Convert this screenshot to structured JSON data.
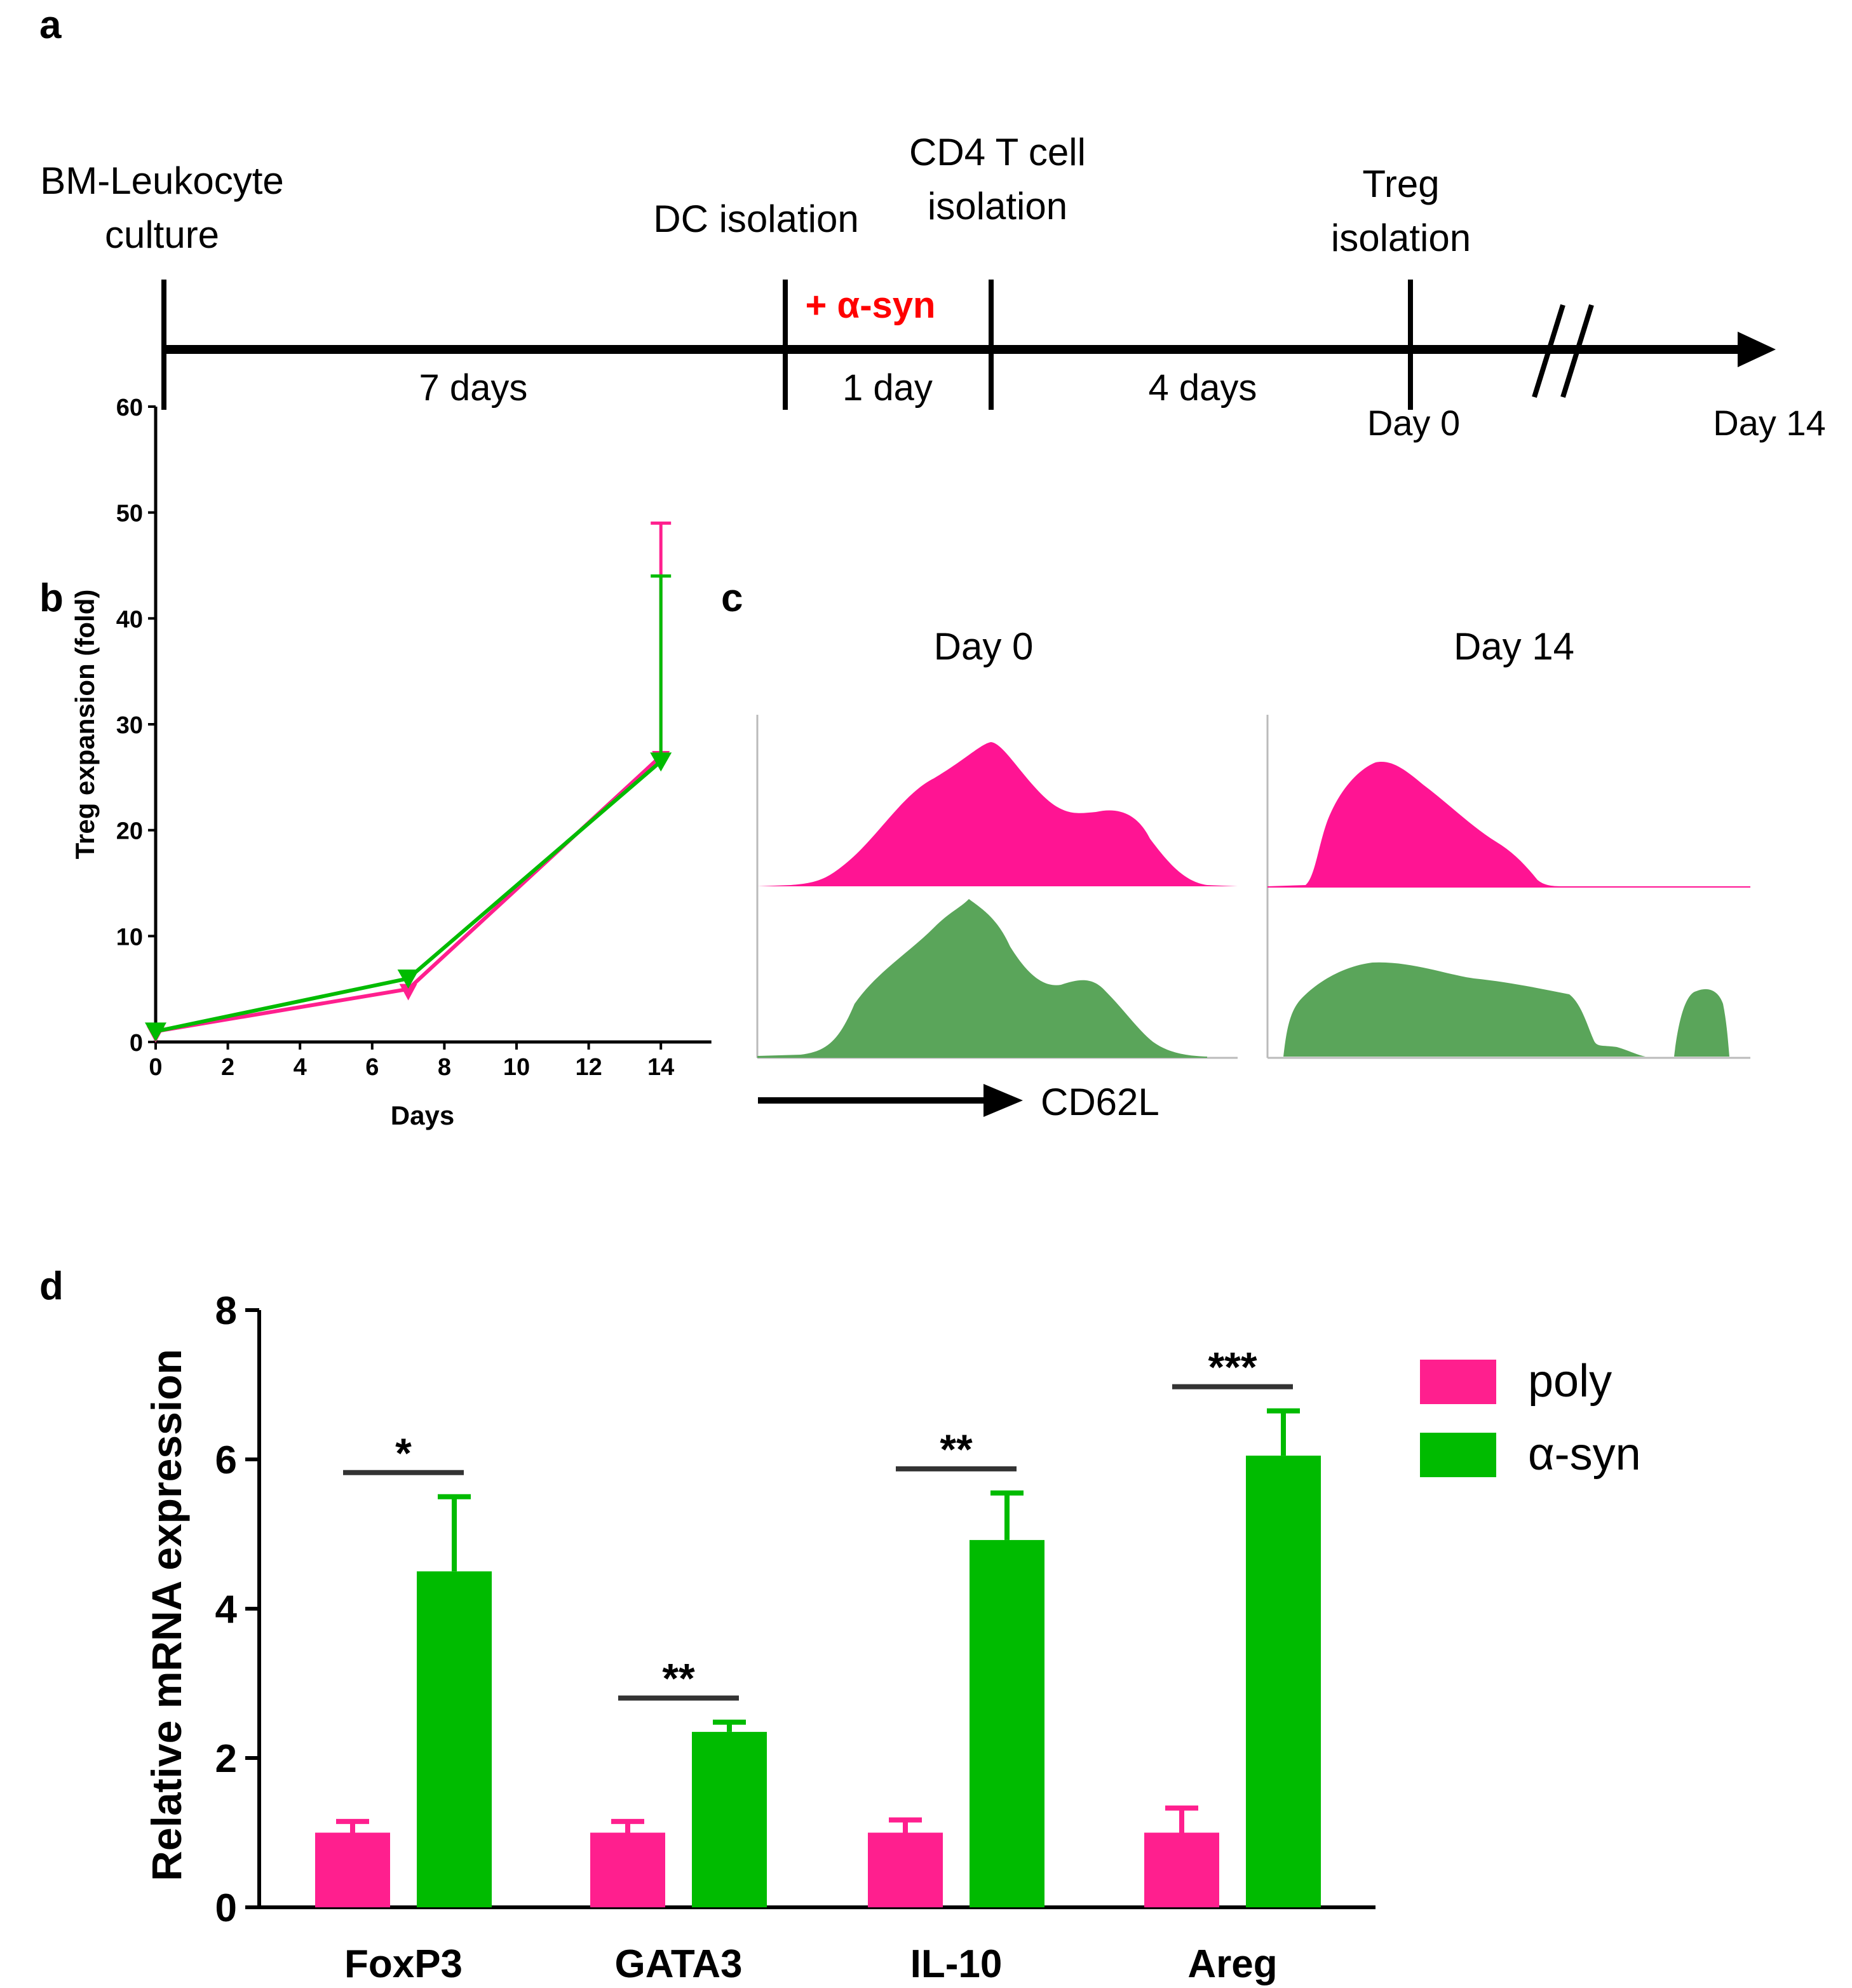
{
  "panel_labels": {
    "a": "a",
    "b": "b",
    "c": "c",
    "d": "d"
  },
  "timeline": {
    "stages": [
      {
        "line1": "BM-Leukocyte",
        "line2": "culture"
      },
      {
        "line1": "DC isolation",
        "line2": ""
      },
      {
        "line1": "CD4 T cell",
        "line2": "isolation"
      },
      {
        "line1": "Treg",
        "line2": "isolation"
      }
    ],
    "treatment": "+ α-syn",
    "intervals": [
      "7 days",
      "1 day",
      "4 days"
    ],
    "day0": "Day 0",
    "day14": "Day 14"
  },
  "histograms": {
    "col_titles": [
      "Day 0",
      "Day 14"
    ],
    "axis_label": "CD62L",
    "colors": {
      "poly": "#ff1493",
      "asyn": "#5aa55a"
    }
  },
  "colors": {
    "poly": "#ff1f8e",
    "asyn": "#00bb00"
  },
  "chart_data": [
    {
      "type": "line",
      "panel": "b",
      "title": "",
      "xlabel": "Days",
      "ylabel": "Treg expansion (fold)",
      "xlim": [
        0,
        15
      ],
      "ylim": [
        0,
        60
      ],
      "xticks": [
        "0",
        "2",
        "4",
        "6",
        "8",
        "10",
        "12",
        "14"
      ],
      "yticks": [
        "0",
        "10",
        "20",
        "30",
        "40",
        "50",
        "60"
      ],
      "series": [
        {
          "name": "poly",
          "x": [
            0,
            7,
            14
          ],
          "y": [
            1,
            5,
            27
          ],
          "err": [
            0,
            0,
            22
          ]
        },
        {
          "name": "α-syn",
          "x": [
            0,
            7,
            14
          ],
          "y": [
            1,
            6,
            26.5
          ],
          "err": [
            0,
            0,
            17.5
          ]
        }
      ]
    },
    {
      "type": "bar",
      "panel": "d",
      "title": "",
      "xlabel": "",
      "ylabel": "Relative mRNA expression",
      "ylim": [
        0,
        8
      ],
      "yticks": [
        "0",
        "2",
        "4",
        "6",
        "8"
      ],
      "categories": [
        "FoxP3",
        "GATA3",
        "IL-10",
        "Areg"
      ],
      "series": [
        {
          "name": "poly",
          "values": [
            1.0,
            1.0,
            1.0,
            1.0
          ],
          "err": [
            0.15,
            0.15,
            0.17,
            0.33
          ]
        },
        {
          "name": "α-syn",
          "values": [
            4.5,
            2.35,
            4.92,
            6.05
          ],
          "err": [
            1.0,
            0.13,
            0.63,
            0.6
          ]
        }
      ],
      "significance": [
        "*",
        "**",
        "**",
        "***"
      ],
      "legend": [
        "poly",
        "α-syn"
      ]
    }
  ]
}
